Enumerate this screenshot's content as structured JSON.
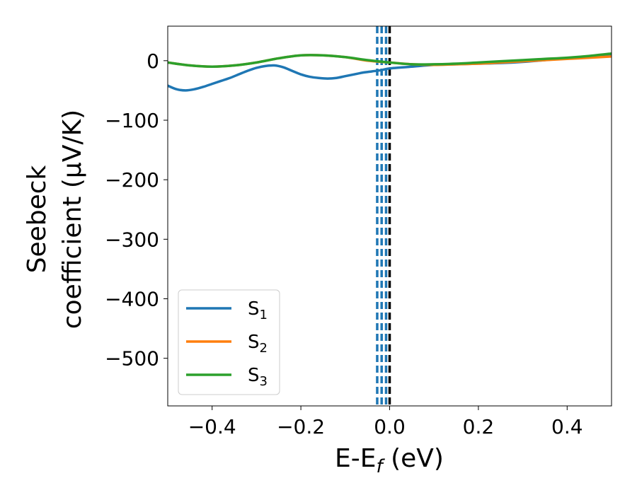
{
  "chart_data": {
    "type": "line",
    "title": "",
    "xlabel": "E-E",
    "xlabel_sub": "f",
    "xlabel_unit": " (eV)",
    "ylabel_line1": "Seebeck",
    "ylabel_line2": "coefficient  (μV/K)",
    "xlim": [
      -0.5,
      0.5
    ],
    "ylim": [
      -580,
      58
    ],
    "xticks": [
      -0.4,
      -0.2,
      0.0,
      0.2,
      0.4
    ],
    "xtick_labels": [
      "−0.4",
      "−0.2",
      "0.0",
      "0.2",
      "0.4"
    ],
    "yticks": [
      0,
      -100,
      -200,
      -300,
      -400,
      -500
    ],
    "ytick_labels": [
      "0",
      "−100",
      "−200",
      "−300",
      "−400",
      "−500"
    ],
    "grid": false,
    "legend_position": "lower-left",
    "vlines": [
      {
        "x": -0.028,
        "style": "dashed",
        "color": "#1f77b4"
      },
      {
        "x": -0.018,
        "style": "dashed",
        "color": "#1f77b4"
      },
      {
        "x": -0.008,
        "style": "dashed",
        "color": "#1f77b4"
      },
      {
        "x": 0.0,
        "style": "dashed",
        "color": "#000000"
      }
    ],
    "series": [
      {
        "name": "S",
        "name_sub": "1",
        "color": "#1f77b4",
        "x": [
          -0.5,
          -0.48,
          -0.46,
          -0.44,
          -0.42,
          -0.4,
          -0.38,
          -0.36,
          -0.34,
          -0.32,
          -0.3,
          -0.28,
          -0.26,
          -0.24,
          -0.22,
          -0.2,
          -0.18,
          -0.16,
          -0.14,
          -0.12,
          -0.1,
          -0.08,
          -0.06,
          -0.04,
          -0.02,
          0.0,
          0.05,
          0.1,
          0.15,
          0.2,
          0.25,
          0.3,
          0.35,
          0.4,
          0.45,
          0.5
        ],
        "y": [
          -42,
          -48,
          -50,
          -48,
          -44,
          -39,
          -34,
          -29,
          -23,
          -17,
          -12,
          -9,
          -8,
          -11,
          -17,
          -23,
          -27,
          -29,
          -30,
          -29,
          -26,
          -23,
          -20,
          -18,
          -16,
          -13,
          -10,
          -7,
          -6,
          -5,
          -4,
          -2,
          1,
          4,
          6,
          8
        ]
      },
      {
        "name": "S",
        "name_sub": "2",
        "color": "#ff7f0e",
        "x": [
          -0.5,
          -0.45,
          -0.4,
          -0.35,
          -0.3,
          -0.25,
          -0.2,
          -0.15,
          -0.1,
          -0.05,
          0.0,
          0.05,
          0.1,
          0.15,
          0.2,
          0.25,
          0.3,
          0.35,
          0.4,
          0.45,
          0.5
        ],
        "y": [
          -3,
          -8,
          -10,
          -8,
          -3,
          4,
          9,
          9,
          6,
          0,
          -3,
          -6,
          -7,
          -6,
          -5,
          -3,
          -1,
          1,
          3,
          5,
          7
        ]
      },
      {
        "name": "S",
        "name_sub": "3",
        "color": "#2ca02c",
        "x": [
          -0.5,
          -0.45,
          -0.4,
          -0.35,
          -0.3,
          -0.25,
          -0.2,
          -0.15,
          -0.1,
          -0.05,
          0.0,
          0.05,
          0.1,
          0.15,
          0.2,
          0.25,
          0.3,
          0.35,
          0.4,
          0.45,
          0.5
        ],
        "y": [
          -3,
          -8,
          -10,
          -8,
          -3,
          4,
          9,
          9,
          6,
          1,
          -3,
          -6,
          -6,
          -5,
          -3,
          -1,
          1,
          3,
          5,
          8,
          12
        ]
      }
    ]
  }
}
